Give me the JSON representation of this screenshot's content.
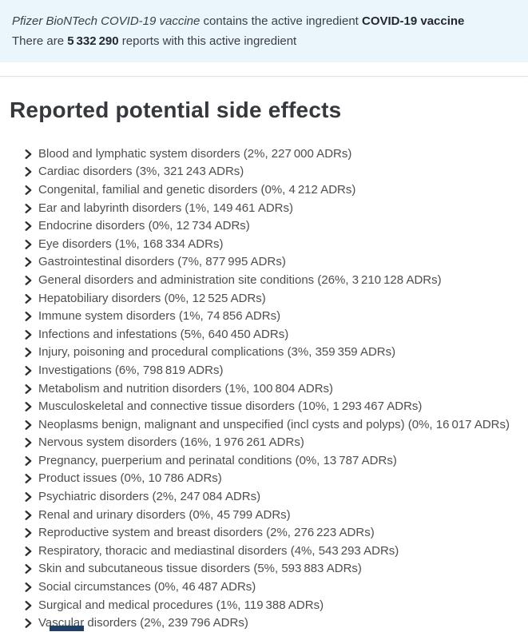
{
  "header": {
    "product_name": "Pfizer BioNTech COVID-19 vaccine",
    "line1_text": " contains the active ingredient ",
    "active_ingredient": "COVID-19 vaccine",
    "line2_prefix": "There are ",
    "report_count": "5 332 290",
    "line2_suffix": " reports with this active ingredient"
  },
  "main": {
    "title": "Reported potential side effects",
    "side_effects": [
      "Blood and lymphatic system disorders (2%, 227 000 ADRs)",
      "Cardiac disorders (3%, 321 243 ADRs)",
      "Congenital, familial and genetic disorders (0%, 4 212 ADRs)",
      "Ear and labyrinth disorders (1%, 149 461 ADRs)",
      "Endocrine disorders (0%, 12 734 ADRs)",
      "Eye disorders (1%, 168 334 ADRs)",
      "Gastrointestinal disorders (7%, 877 995 ADRs)",
      "General disorders and administration site conditions (26%, 3 210 128 ADRs)",
      "Hepatobiliary disorders (0%, 12 525 ADRs)",
      "Immune system disorders (1%, 74 856 ADRs)",
      "Infections and infestations (5%, 640 450 ADRs)",
      "Injury, poisoning and procedural complications (3%, 359 359 ADRs)",
      "Investigations (6%, 798 819 ADRs)",
      "Metabolism and nutrition disorders (1%, 100 804 ADRs)",
      "Musculoskeletal and connective tissue disorders (10%, 1 293 467 ADRs)",
      "Neoplasms benign, malignant and unspecified (incl cysts and polyps) (0%, 16 017 ADRs)",
      "Nervous system disorders (16%, 1 976 261 ADRs)",
      "Pregnancy, puerperium and perinatal conditions (0%, 13 787 ADRs)",
      "Product issues (0%, 10 786 ADRs)",
      "Psychiatric disorders (2%, 247 084 ADRs)",
      "Renal and urinary disorders (0%, 45 799 ADRs)",
      "Reproductive system and breast disorders (2%, 276 223 ADRs)",
      "Respiratory, thoracic and mediastinal disorders (4%, 543 293 ADRs)",
      "Skin and subcutaneous tissue disorders (5%, 593 883 ADRs)",
      "Social circumstances (0%, 46 487 ADRs)",
      "Surgical and medical procedures (1%, 119 388 ADRs)",
      "Vascular disorders (2%, 239 796 ADRs)"
    ]
  },
  "icons": {
    "row_expander": "chevron-right-icon"
  },
  "colors": {
    "info_panel_bg": "#eaf5fc",
    "divider": "#e3e3e3",
    "heading_text": "#35393d",
    "body_text": "#4e4e4e",
    "chevron": "#2e2e2e",
    "cutoff_bar": "#1e3f66"
  }
}
